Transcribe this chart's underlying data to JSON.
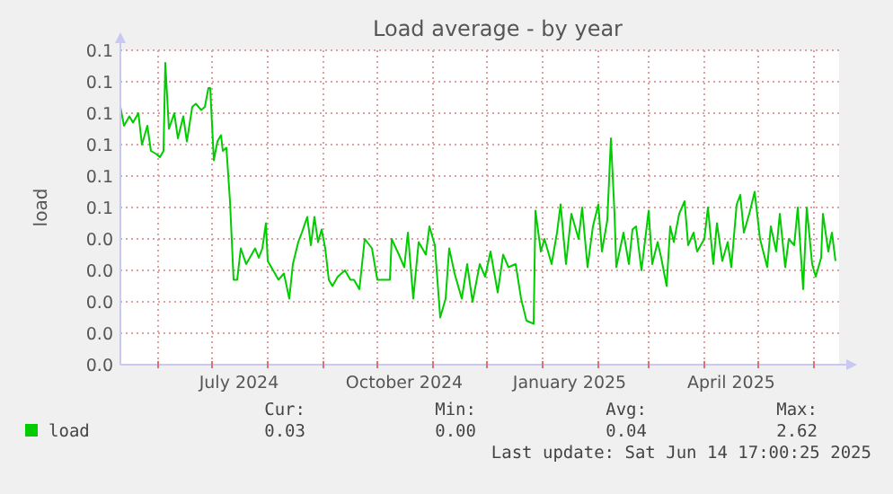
{
  "chart_data": {
    "type": "line",
    "title": "Load average - by year",
    "ylabel": "load",
    "xlim": [
      "2024-05-11",
      "2025-06-15"
    ],
    "xticks": [
      {
        "value": "2024-06-01",
        "label": null
      },
      {
        "value": "2024-07-01",
        "label": null
      },
      {
        "value": "2024-07-16",
        "label": "July 2024"
      },
      {
        "value": "2024-08-01",
        "label": null
      },
      {
        "value": "2024-09-01",
        "label": null
      },
      {
        "value": "2024-10-01",
        "label": null
      },
      {
        "value": "2024-10-16",
        "label": "October 2024"
      },
      {
        "value": "2024-11-01",
        "label": null
      },
      {
        "value": "2024-12-01",
        "label": null
      },
      {
        "value": "2025-01-01",
        "label": null
      },
      {
        "value": "2025-01-16",
        "label": "January 2025"
      },
      {
        "value": "2025-02-01",
        "label": null
      },
      {
        "value": "2025-03-01",
        "label": null
      },
      {
        "value": "2025-04-01",
        "label": null
      },
      {
        "value": "2025-04-16",
        "label": "April 2025"
      },
      {
        "value": "2025-05-01",
        "label": null
      },
      {
        "value": "2025-06-01",
        "label": null
      }
    ],
    "ylim": [
      0,
      0.1
    ],
    "yticks": [
      {
        "value": 0,
        "label": "0.0"
      },
      {
        "value": 0.01,
        "label": "0.0"
      },
      {
        "value": 0.02,
        "label": "0.0"
      },
      {
        "value": 0.03,
        "label": "0.0"
      },
      {
        "value": 0.04,
        "label": "0.0"
      },
      {
        "value": 0.05,
        "label": "0.1"
      },
      {
        "value": 0.06,
        "label": "0.1"
      },
      {
        "value": 0.07,
        "label": "0.1"
      },
      {
        "value": 0.08,
        "label": "0.1"
      },
      {
        "value": 0.09,
        "label": "0.1"
      },
      {
        "value": 0.1,
        "label": "0.1"
      }
    ],
    "grid": true,
    "legend": "bottom",
    "annotations": [
      "Cur:",
      "Min:",
      "Avg:",
      "Max:",
      "0.03",
      "0.00",
      "0.04",
      "2.62",
      "Last update: Sat Jun 14 17:00:25 2025"
    ],
    "series": [
      {
        "name": "load",
        "color": "#00cc00",
        "x": [
          "2024-05-11",
          "2024-05-13",
          "2024-05-16",
          "2024-05-18",
          "2024-05-21",
          "2024-05-23",
          "2024-05-26",
          "2024-05-28",
          "2024-05-31",
          "2024-06-02",
          "2024-06-04",
          "2024-06-05",
          "2024-06-07",
          "2024-06-10",
          "2024-06-12",
          "2024-06-15",
          "2024-06-17",
          "2024-06-20",
          "2024-06-22",
          "2024-06-25",
          "2024-06-27",
          "2024-06-29",
          "2024-06-30",
          "2024-07-02",
          "2024-07-04",
          "2024-07-06",
          "2024-07-07",
          "2024-07-09",
          "2024-07-11",
          "2024-07-13",
          "2024-07-15",
          "2024-07-17",
          "2024-07-20",
          "2024-07-22",
          "2024-07-25",
          "2024-07-27",
          "2024-07-29",
          "2024-07-31",
          "2024-08-01",
          "2024-08-04",
          "2024-08-07",
          "2024-08-10",
          "2024-08-13",
          "2024-08-15",
          "2024-08-18",
          "2024-08-20",
          "2024-08-23",
          "2024-08-25",
          "2024-08-27",
          "2024-08-29",
          "2024-08-31",
          "2024-09-02",
          "2024-09-04",
          "2024-09-06",
          "2024-09-09",
          "2024-09-13",
          "2024-09-16",
          "2024-09-18",
          "2024-09-21",
          "2024-09-24",
          "2024-09-28",
          "2024-10-01",
          "2024-10-08",
          "2024-10-09",
          "2024-10-13",
          "2024-10-16",
          "2024-10-18",
          "2024-10-21",
          "2024-10-24",
          "2024-10-28",
          "2024-10-30",
          "2024-11-02",
          "2024-11-05",
          "2024-11-08",
          "2024-11-10",
          "2024-11-13",
          "2024-11-17",
          "2024-11-20",
          "2024-11-23",
          "2024-11-27",
          "2024-11-30",
          "2024-12-03",
          "2024-12-07",
          "2024-12-10",
          "2024-12-13",
          "2024-12-17",
          "2024-12-20",
          "2024-12-23",
          "2024-12-27",
          "2024-12-28",
          "2024-12-31",
          "2025-01-02",
          "2025-01-06",
          "2025-01-09",
          "2025-01-11",
          "2025-01-14",
          "2025-01-17",
          "2025-01-21",
          "2025-01-23",
          "2025-01-26",
          "2025-01-29",
          "2025-02-01",
          "2025-02-03",
          "2025-02-06",
          "2025-02-08",
          "2025-02-10",
          "2025-02-11",
          "2025-02-15",
          "2025-02-18",
          "2025-02-20",
          "2025-02-22",
          "2025-02-25",
          "2025-03-01",
          "2025-03-03",
          "2025-03-06",
          "2025-03-08",
          "2025-03-11",
          "2025-03-13",
          "2025-03-15",
          "2025-03-18",
          "2025-03-21",
          "2025-03-23",
          "2025-03-26",
          "2025-03-28",
          "2025-04-01",
          "2025-04-03",
          "2025-04-06",
          "2025-04-08",
          "2025-04-11",
          "2025-04-14",
          "2025-04-16",
          "2025-04-19",
          "2025-04-21",
          "2025-04-23",
          "2025-04-26",
          "2025-04-29",
          "2025-05-02",
          "2025-05-06",
          "2025-05-08",
          "2025-05-11",
          "2025-05-13",
          "2025-05-16",
          "2025-05-18",
          "2025-05-21",
          "2025-05-23",
          "2025-05-26",
          "2025-05-28",
          "2025-05-31",
          "2025-06-02",
          "2025-06-05",
          "2025-06-06",
          "2025-06-09",
          "2025-06-11",
          "2025-06-13"
        ],
        "values": [
          0.082,
          0.076,
          0.079,
          0.077,
          0.08,
          0.07,
          0.076,
          0.068,
          0.067,
          0.066,
          0.068,
          0.096,
          0.075,
          0.08,
          0.072,
          0.079,
          0.071,
          0.082,
          0.083,
          0.081,
          0.082,
          0.088,
          0.088,
          0.065,
          0.071,
          0.073,
          0.068,
          0.069,
          0.052,
          0.027,
          0.027,
          0.037,
          0.032,
          0.034,
          0.037,
          0.034,
          0.037,
          0.045,
          0.033,
          0.03,
          0.027,
          0.029,
          0.021,
          0.032,
          0.039,
          0.042,
          0.047,
          0.038,
          0.047,
          0.039,
          0.043,
          0.037,
          0.027,
          0.025,
          0.028,
          0.03,
          0.027,
          0.027,
          0.024,
          0.04,
          0.037,
          0.027,
          0.027,
          0.04,
          0.035,
          0.031,
          0.042,
          0.021,
          0.039,
          0.035,
          0.044,
          0.038,
          0.015,
          0.021,
          0.037,
          0.029,
          0.021,
          0.032,
          0.02,
          0.032,
          0.028,
          0.036,
          0.023,
          0.035,
          0.031,
          0.032,
          0.021,
          0.014,
          0.013,
          0.049,
          0.036,
          0.04,
          0.032,
          0.042,
          0.051,
          0.032,
          0.048,
          0.04,
          0.05,
          0.031,
          0.044,
          0.051,
          0.036,
          0.046,
          0.072,
          0.048,
          0.031,
          0.042,
          0.032,
          0.043,
          0.044,
          0.03,
          0.049,
          0.032,
          0.039,
          0.034,
          0.025,
          0.044,
          0.039,
          0.048,
          0.052,
          0.038,
          0.042,
          0.036,
          0.04,
          0.05,
          0.032,
          0.045,
          0.033,
          0.039,
          0.031,
          0.051,
          0.054,
          0.042,
          0.048,
          0.055,
          0.04,
          0.031,
          0.044,
          0.036,
          0.048,
          0.031,
          0.04,
          0.038,
          0.05,
          0.024,
          0.05,
          0.032,
          0.028,
          0.034,
          0.048,
          0.036,
          0.042,
          0.033
        ]
      }
    ]
  }
}
